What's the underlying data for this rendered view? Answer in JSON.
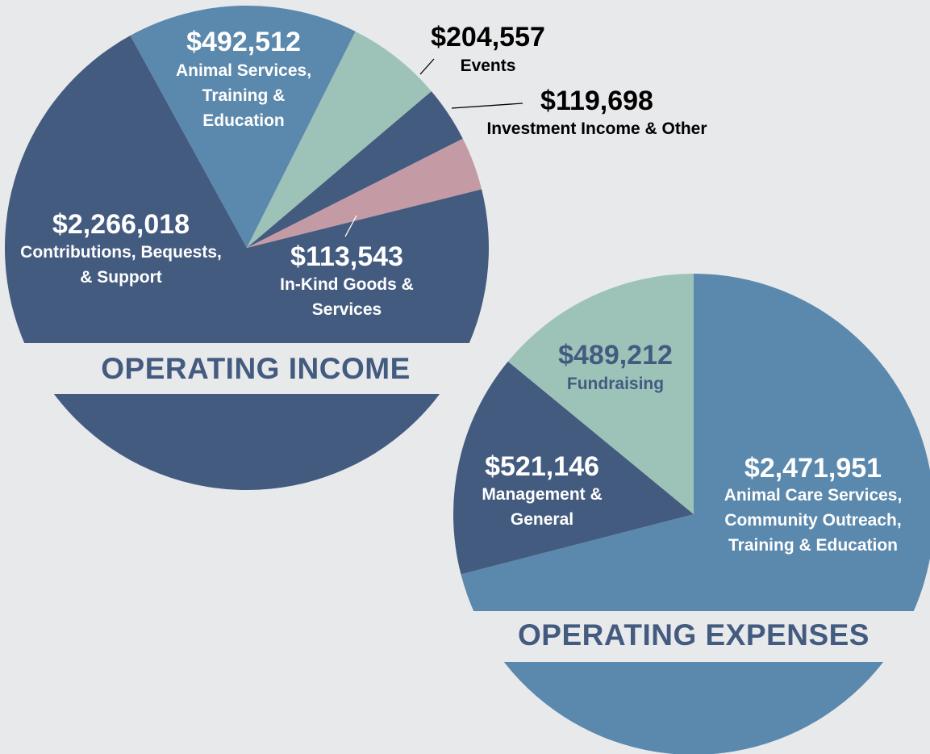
{
  "chart_data": [
    {
      "type": "pie",
      "title": "OPERATING INCOME",
      "startangle": 76,
      "categories": [
        "Contributions, Bequests, & Support",
        "Animal Services, Training & Education",
        "Events",
        "Investment Income & Other",
        "In-Kind Goods & Services"
      ],
      "values": [
        2266018,
        492512,
        204557,
        119698,
        113543
      ],
      "value_labels": [
        "$2,266,018",
        "$492,512",
        "$204,557",
        "$119,698",
        "$113,543"
      ],
      "colors": [
        "#445b80",
        "#5b88ad",
        "#9dc3b9",
        "#445b80",
        "#c49ba5"
      ]
    },
    {
      "type": "pie",
      "title": "OPERATING EXPENSES",
      "startangle": 0,
      "categories": [
        "Animal Care Services, Community Outreach, Training & Education",
        "Management & General",
        "Fundraising"
      ],
      "values": [
        2471951,
        521146,
        489212
      ],
      "value_labels": [
        "$2,471,951",
        "$521,146",
        "$489,212"
      ],
      "colors": [
        "#5b88ad",
        "#445b80",
        "#9dc3b9"
      ]
    }
  ]
}
